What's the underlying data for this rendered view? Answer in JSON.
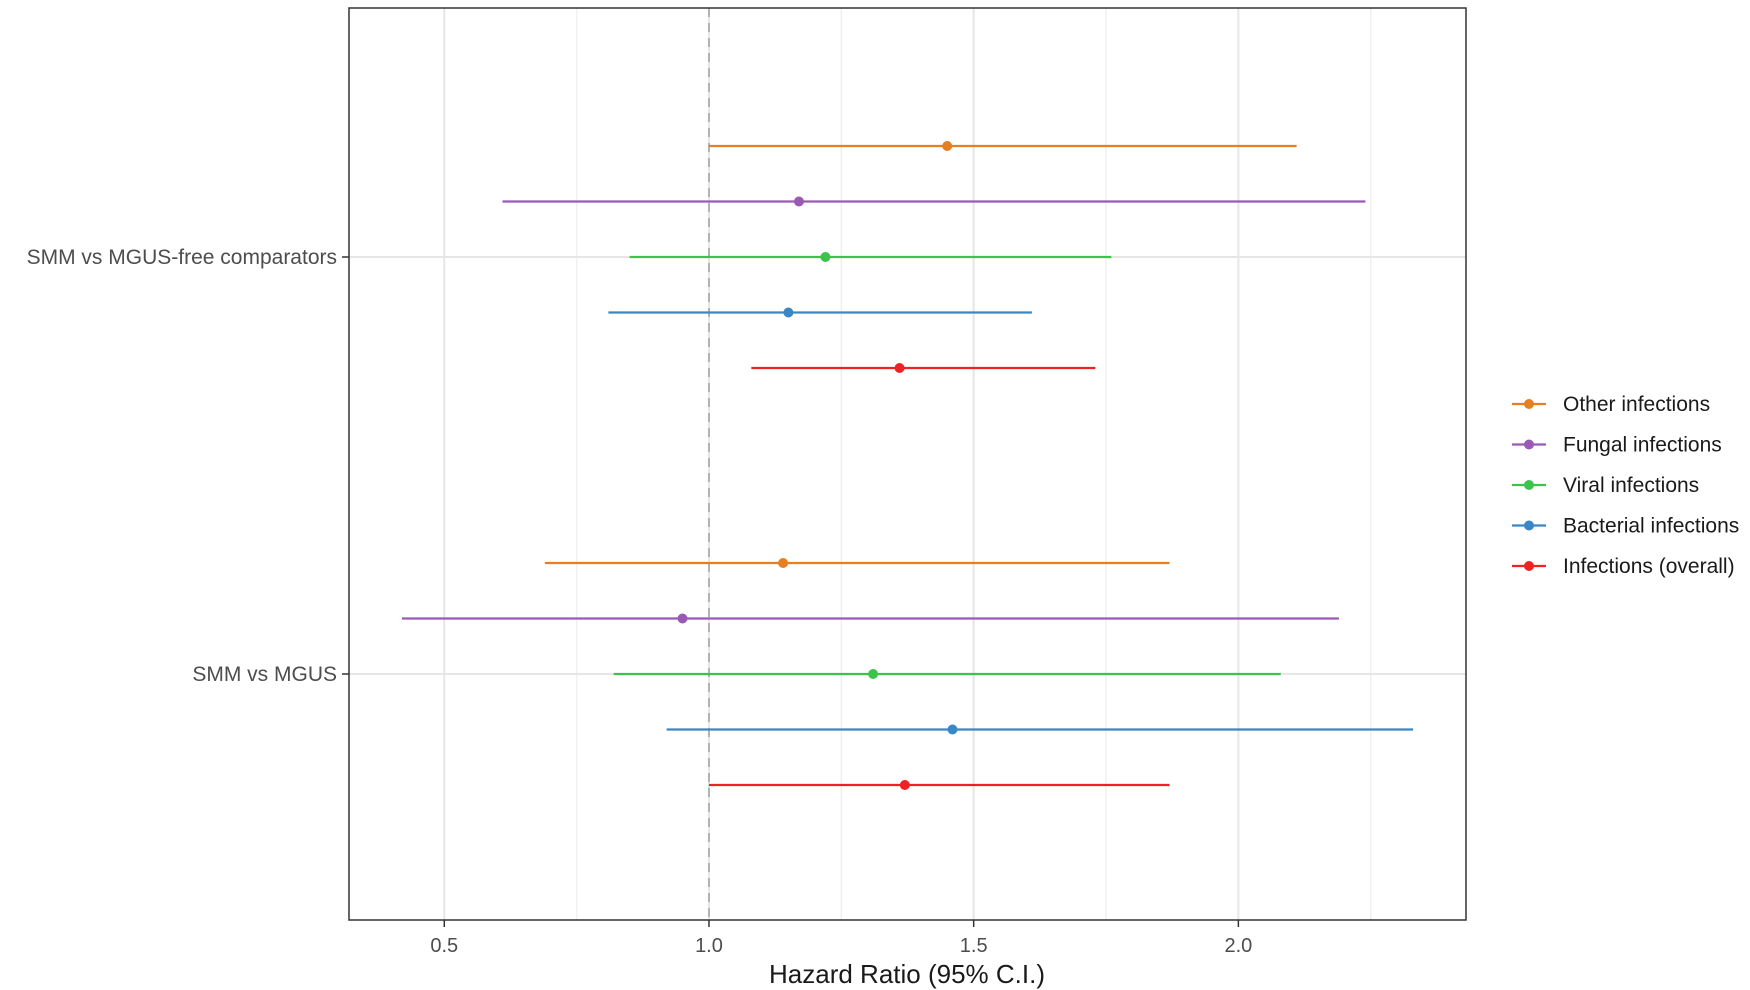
{
  "chart_data": {
    "type": "forest",
    "xlabel": "Hazard Ratio (95% C.I.)",
    "ylabel": "",
    "xlim": [
      0.32,
      2.43
    ],
    "x_ticks": [
      {
        "value": 0.5,
        "label": "0.5"
      },
      {
        "value": 1.0,
        "label": "1.0"
      },
      {
        "value": 1.5,
        "label": "1.5"
      },
      {
        "value": 2.0,
        "label": "2.0"
      }
    ],
    "x_minor_gridlines": [
      0.75,
      1.25,
      1.75,
      2.25
    ],
    "reference_line": {
      "value": 1.0,
      "style": "dashed"
    },
    "grid": true,
    "legend": {
      "position": "right"
    },
    "groups": [
      "SMM vs MGUS-free comparators",
      "SMM vs MGUS"
    ],
    "series": [
      {
        "name": "Other infections",
        "color": "#E67E22",
        "estimates": [
          {
            "group": "SMM vs MGUS-free comparators",
            "hr": 1.45,
            "lower": 1.0,
            "upper": 2.11
          },
          {
            "group": "SMM vs MGUS",
            "hr": 1.14,
            "lower": 0.69,
            "upper": 1.87
          }
        ]
      },
      {
        "name": "Fungal infections",
        "color": "#9B59B6",
        "estimates": [
          {
            "group": "SMM vs MGUS-free comparators",
            "hr": 1.17,
            "lower": 0.61,
            "upper": 2.24
          },
          {
            "group": "SMM vs MGUS",
            "hr": 0.95,
            "lower": 0.42,
            "upper": 2.19
          }
        ]
      },
      {
        "name": "Viral infections",
        "color": "#3CC34A",
        "estimates": [
          {
            "group": "SMM vs MGUS-free comparators",
            "hr": 1.22,
            "lower": 0.85,
            "upper": 1.76
          },
          {
            "group": "SMM vs MGUS",
            "hr": 1.31,
            "lower": 0.82,
            "upper": 2.08
          }
        ]
      },
      {
        "name": "Bacterial infections",
        "color": "#3A87C8",
        "estimates": [
          {
            "group": "SMM vs MGUS-free comparators",
            "hr": 1.15,
            "lower": 0.81,
            "upper": 1.61
          },
          {
            "group": "SMM vs MGUS",
            "hr": 1.46,
            "lower": 0.92,
            "upper": 2.33
          }
        ]
      },
      {
        "name": "Infections (overall)",
        "color": "#EE2222",
        "estimates": [
          {
            "group": "SMM vs MGUS-free comparators",
            "hr": 1.36,
            "lower": 1.08,
            "upper": 1.73
          },
          {
            "group": "SMM vs MGUS",
            "hr": 1.37,
            "lower": 1.0,
            "upper": 1.87
          }
        ]
      }
    ]
  }
}
